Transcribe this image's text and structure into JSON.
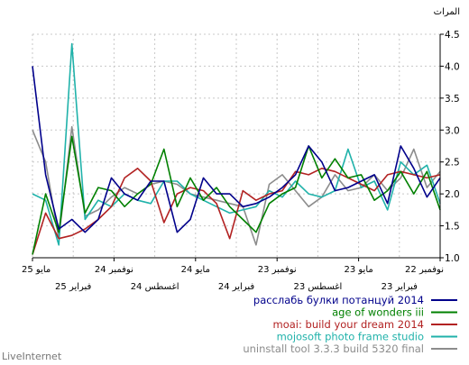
{
  "chart_data": {
    "type": "line",
    "title": "",
    "ylabel": "المرات",
    "xlabel": "",
    "ylim": [
      1.0,
      4.5
    ],
    "yticks": [
      "1.0",
      "1.5",
      "2.0",
      "2.5",
      "3.0",
      "3.5",
      "4.0",
      "4.5"
    ],
    "x_ticks_top": [
      "مايو 25",
      "نوفمبر 24",
      "مايو 24",
      "نوفمبر 23",
      "مايو 23",
      "نوفمبر 22"
    ],
    "x_ticks_bottom": [
      "فبراير 25",
      "اغسطس 24",
      "فبراير 24",
      "اغسطس 23",
      "فبراير 23"
    ],
    "grid": true,
    "legend_position": "bottom-right",
    "series": [
      {
        "name": "расслабь булки потанцуй 2014",
        "color": "#00008b",
        "values": [
          4.0,
          2.3,
          1.45,
          1.6,
          1.4,
          1.6,
          2.25,
          2.0,
          1.9,
          2.2,
          2.2,
          1.4,
          1.6,
          2.25,
          2.0,
          2.0,
          1.8,
          1.85,
          1.95,
          2.1,
          2.3,
          2.75,
          2.5,
          2.05,
          2.1,
          2.2,
          2.3,
          1.85,
          2.75,
          2.4,
          1.95,
          2.25
        ]
      },
      {
        "name": "age of wonders iii",
        "color": "#008000",
        "values": [
          1.05,
          2.0,
          1.4,
          2.9,
          1.7,
          2.1,
          2.05,
          1.8,
          2.0,
          2.15,
          2.7,
          1.8,
          2.25,
          1.9,
          2.1,
          1.8,
          1.6,
          1.4,
          1.85,
          2.0,
          2.1,
          2.75,
          2.25,
          2.55,
          2.25,
          2.3,
          1.9,
          2.05,
          2.35,
          2.0,
          2.35,
          1.75
        ]
      },
      {
        "name": "moai: build your dream 2014",
        "color": "#b22222",
        "values": [
          1.05,
          1.7,
          1.3,
          1.35,
          1.45,
          1.6,
          1.8,
          2.25,
          2.4,
          2.2,
          1.55,
          2.0,
          2.1,
          2.05,
          1.85,
          1.3,
          2.05,
          1.9,
          2.0,
          2.05,
          2.35,
          2.3,
          2.4,
          2.35,
          2.25,
          2.15,
          2.05,
          2.3,
          2.35,
          2.3,
          2.25,
          2.3
        ]
      },
      {
        "name": "mojosoft photo frame studio",
        "color": "#20b2aa",
        "values": [
          2.0,
          1.9,
          1.2,
          4.35,
          1.6,
          1.9,
          1.8,
          2.0,
          1.9,
          1.85,
          2.2,
          2.2,
          2.0,
          1.9,
          1.8,
          1.7,
          1.75,
          1.8,
          2.05,
          1.95,
          2.2,
          2.0,
          1.95,
          2.05,
          2.7,
          2.1,
          2.2,
          1.75,
          2.5,
          2.3,
          2.45,
          1.85
        ]
      },
      {
        "name": "uninstall tool 3.3.3 build 5320 final",
        "color": "#8c8c8c",
        "values": [
          3.0,
          2.5,
          1.3,
          3.05,
          1.65,
          1.75,
          1.95,
          2.1,
          2.0,
          2.15,
          2.2,
          2.15,
          2.0,
          1.95,
          1.9,
          1.85,
          1.8,
          1.2,
          2.15,
          2.3,
          2.05,
          1.8,
          1.95,
          2.3,
          2.05,
          2.1,
          2.3,
          2.05,
          2.25,
          2.7,
          2.1,
          2.35
        ]
      }
    ]
  },
  "footer": {
    "brand": "LiveInternet"
  }
}
